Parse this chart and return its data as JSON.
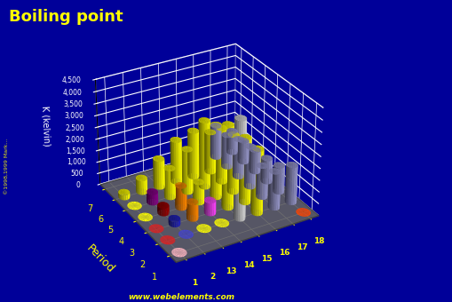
{
  "title": "Boiling point",
  "bg_color": "#000099",
  "floor_color": "#555555",
  "title_color": "#FFFF00",
  "label_color": "#FFFF00",
  "period_label_color": "#FFFFFF",
  "watermark": "www.webelements.com",
  "zlabel": "K (kelvin)",
  "period_label": "Period",
  "zlim": [
    0,
    4500
  ],
  "zticks": [
    0,
    500,
    1000,
    1500,
    2000,
    2500,
    3000,
    3500,
    4000,
    4500
  ],
  "ztick_labels": [
    "0",
    "500",
    "1,000",
    "1,500",
    "2,000",
    "2,500",
    "3,000",
    "3,500",
    "4,000",
    "4,500"
  ],
  "group_labels": [
    "1",
    "2",
    "13",
    "14",
    "15",
    "16",
    "17",
    "18"
  ],
  "view_elev": 30,
  "view_azim": -120,
  "elements": [
    {
      "group_idx": 0,
      "period": 1,
      "bp": 20,
      "color": "#FF4400",
      "flat": true
    },
    {
      "group_idx": 7,
      "period": 1,
      "bp": 4,
      "color": "#FFB6C1",
      "flat": true
    },
    {
      "group_idx": 0,
      "period": 2,
      "bp": 1615,
      "color": "#9999CC",
      "flat": false
    },
    {
      "group_idx": 1,
      "period": 2,
      "bp": 1560,
      "color": "#9999CC",
      "flat": false
    },
    {
      "group_idx": 2,
      "period": 2,
      "bp": 2740,
      "color": "#FFFF00",
      "flat": false
    },
    {
      "group_idx": 3,
      "period": 2,
      "bp": 4200,
      "color": "#D8D8D8",
      "flat": false
    },
    {
      "group_idx": 4,
      "period": 2,
      "bp": 77,
      "color": "#FFFF00",
      "flat": true
    },
    {
      "group_idx": 5,
      "period": 2,
      "bp": 90,
      "color": "#FFFF00",
      "flat": true
    },
    {
      "group_idx": 6,
      "period": 2,
      "bp": 85,
      "color": "#4444CC",
      "flat": true
    },
    {
      "group_idx": 7,
      "period": 2,
      "bp": 87,
      "color": "#DD2222",
      "flat": true
    },
    {
      "group_idx": 0,
      "period": 3,
      "bp": 1156,
      "color": "#9999CC",
      "flat": false
    },
    {
      "group_idx": 1,
      "period": 3,
      "bp": 1363,
      "color": "#9999CC",
      "flat": false
    },
    {
      "group_idx": 2,
      "period": 3,
      "bp": 2792,
      "color": "#FFFF00",
      "flat": false
    },
    {
      "group_idx": 3,
      "period": 3,
      "bp": 3538,
      "color": "#FFFF00",
      "flat": false
    },
    {
      "group_idx": 4,
      "period": 3,
      "bp": 553,
      "color": "#FF44FF",
      "flat": false
    },
    {
      "group_idx": 5,
      "period": 3,
      "bp": 718,
      "color": "#FF8800",
      "flat": false
    },
    {
      "group_idx": 6,
      "period": 3,
      "bp": 239,
      "color": "#2222BB",
      "flat": false
    },
    {
      "group_idx": 7,
      "period": 3,
      "bp": 87,
      "color": "#DD2222",
      "flat": true
    },
    {
      "group_idx": 0,
      "period": 4,
      "bp": 1032,
      "color": "#9999CC",
      "flat": false
    },
    {
      "group_idx": 1,
      "period": 4,
      "bp": 1757,
      "color": "#9999CC",
      "flat": false
    },
    {
      "group_idx": 2,
      "period": 4,
      "bp": 2477,
      "color": "#FFFF00",
      "flat": false
    },
    {
      "group_idx": 3,
      "period": 4,
      "bp": 3107,
      "color": "#FFFF00",
      "flat": false
    },
    {
      "group_idx": 4,
      "period": 4,
      "bp": 887,
      "color": "#FFFF00",
      "flat": false
    },
    {
      "group_idx": 5,
      "period": 4,
      "bp": 958,
      "color": "#FF8800",
      "flat": false
    },
    {
      "group_idx": 6,
      "period": 4,
      "bp": 332,
      "color": "#990000",
      "flat": false
    },
    {
      "group_idx": 7,
      "period": 4,
      "bp": 120,
      "color": "#FFFF00",
      "flat": true
    },
    {
      "group_idx": 0,
      "period": 5,
      "bp": 961,
      "color": "#9999CC",
      "flat": false
    },
    {
      "group_idx": 1,
      "period": 5,
      "bp": 1655,
      "color": "#9999CC",
      "flat": false
    },
    {
      "group_idx": 2,
      "period": 5,
      "bp": 2345,
      "color": "#FFFF00",
      "flat": false
    },
    {
      "group_idx": 3,
      "period": 5,
      "bp": 2876,
      "color": "#FFFF00",
      "flat": false
    },
    {
      "group_idx": 4,
      "period": 5,
      "bp": 1860,
      "color": "#FFFF00",
      "flat": false
    },
    {
      "group_idx": 5,
      "period": 5,
      "bp": 1261,
      "color": "#FFFF00",
      "flat": false
    },
    {
      "group_idx": 6,
      "period": 5,
      "bp": 457,
      "color": "#880088",
      "flat": false
    },
    {
      "group_idx": 7,
      "period": 5,
      "bp": 165,
      "color": "#FFFF00",
      "flat": true
    },
    {
      "group_idx": 0,
      "period": 6,
      "bp": 944,
      "color": "#9999CC",
      "flat": false
    },
    {
      "group_idx": 1,
      "period": 6,
      "bp": 1413,
      "color": "#9999CC",
      "flat": false
    },
    {
      "group_idx": 2,
      "period": 6,
      "bp": 1746,
      "color": "#FFFF00",
      "flat": false
    },
    {
      "group_idx": 3,
      "period": 6,
      "bp": 2022,
      "color": "#FFFF00",
      "flat": false
    },
    {
      "group_idx": 4,
      "period": 6,
      "bp": 1837,
      "color": "#FFFF00",
      "flat": false
    },
    {
      "group_idx": 5,
      "period": 6,
      "bp": 1235,
      "color": "#FFFF00",
      "flat": false
    },
    {
      "group_idx": 6,
      "period": 6,
      "bp": 610,
      "color": "#FFFF00",
      "flat": false
    },
    {
      "group_idx": 7,
      "period": 6,
      "bp": 211,
      "color": "#FFFF00",
      "flat": false
    },
    {
      "group_idx": 0,
      "period": 7,
      "bp": 963,
      "color": "#9999CC",
      "flat": false
    },
    {
      "group_idx": 1,
      "period": 7,
      "bp": 1413,
      "color": "#9999CC",
      "flat": false
    }
  ]
}
